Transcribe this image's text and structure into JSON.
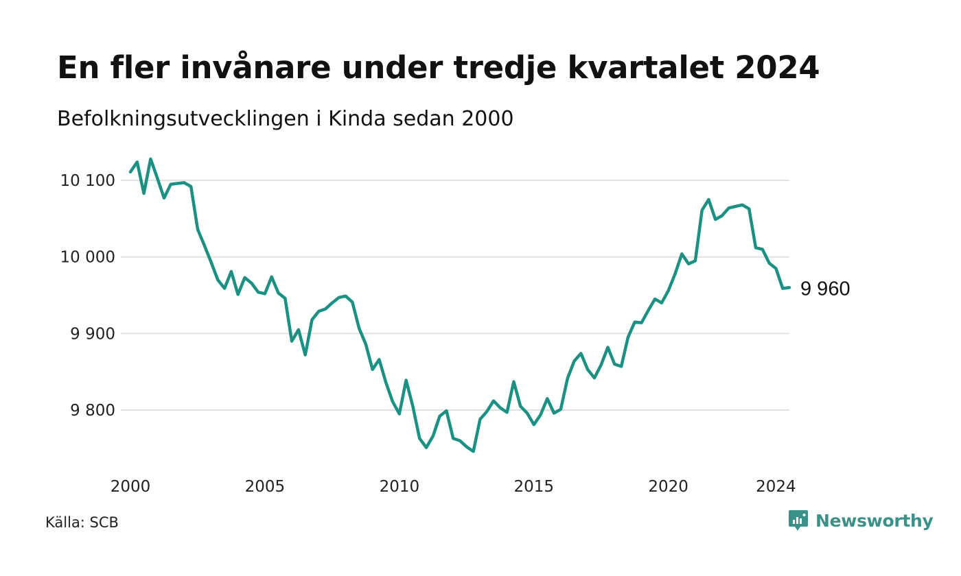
{
  "header": {
    "title": "En fler invånare under tredje kvartalet 2024",
    "subtitle": "Befolkningsutvecklingen i Kinda sedan 2000"
  },
  "footer": {
    "source": "Källa: SCB",
    "brand": "Newsworthy"
  },
  "colors": {
    "line": "#1a9182",
    "grid": "#e1e1e1",
    "brand": "#3a9188"
  },
  "icons": {
    "brand_logo": "newsworthy-logo-icon"
  },
  "chart_data": {
    "type": "line",
    "title": "En fler invånare under tredje kvartalet 2024",
    "subtitle": "Befolkningsutvecklingen i Kinda sedan 2000",
    "xlabel": "",
    "ylabel": "",
    "xlim": [
      2000,
      2024.5
    ],
    "ylim": [
      9740,
      10135
    ],
    "x_ticks": [
      2000,
      2005,
      2010,
      2015,
      2020,
      2024
    ],
    "x_tick_labels": [
      "2000",
      "2005",
      "2010",
      "2015",
      "2020",
      "2024"
    ],
    "y_ticks": [
      9800,
      9900,
      10000,
      10100
    ],
    "y_tick_labels": [
      "9 800",
      "9 900",
      "10 000",
      "10 100"
    ],
    "grid": "horizontal",
    "last_value_label": "9 960",
    "series": [
      {
        "x": [
          2000.0,
          2000.25,
          2000.5,
          2000.75,
          2001.0,
          2001.25,
          2001.5,
          2001.75,
          2002.0,
          2002.25,
          2002.5,
          2002.75,
          2003.0,
          2003.25,
          2003.5,
          2003.75,
          2004.0,
          2004.25,
          2004.5,
          2004.75,
          2005.0,
          2005.25,
          2005.5,
          2005.75,
          2006.0,
          2006.25,
          2006.5,
          2006.75,
          2007.0,
          2007.25,
          2007.5,
          2007.75,
          2008.0,
          2008.25,
          2008.5,
          2008.75,
          2009.0,
          2009.25,
          2009.5,
          2009.75,
          2010.0,
          2010.25,
          2010.5,
          2010.75,
          2011.0,
          2011.25,
          2011.5,
          2011.75,
          2012.0,
          2012.25,
          2012.5,
          2012.75,
          2013.0,
          2013.25,
          2013.5,
          2013.75,
          2014.0,
          2014.25,
          2014.5,
          2014.75,
          2015.0,
          2015.25,
          2015.5,
          2015.75,
          2016.0,
          2016.25,
          2016.5,
          2016.75,
          2017.0,
          2017.25,
          2017.5,
          2017.75,
          2018.0,
          2018.25,
          2018.5,
          2018.75,
          2019.0,
          2019.25,
          2019.5,
          2019.75,
          2020.0,
          2020.25,
          2020.5,
          2020.75,
          2021.0,
          2021.25,
          2021.5,
          2021.75,
          2022.0,
          2022.25,
          2022.5,
          2022.75,
          2023.0,
          2023.25,
          2023.5,
          2023.75,
          2024.0,
          2024.25,
          2024.5
        ],
        "values": [
          10111,
          10124,
          10083,
          10128,
          10103,
          10077,
          10095,
          10096,
          10097,
          10092,
          10036,
          10015,
          9993,
          9970,
          9959,
          9981,
          9951,
          9973,
          9966,
          9954,
          9952,
          9974,
          9953,
          9946,
          9890,
          9905,
          9872,
          9918,
          9929,
          9932,
          9940,
          9947,
          9949,
          9941,
          9907,
          9886,
          9853,
          9866,
          9836,
          9811,
          9795,
          9839,
          9805,
          9763,
          9751,
          9766,
          9792,
          9799,
          9763,
          9760,
          9752,
          9746,
          9788,
          9798,
          9812,
          9803,
          9797,
          9837,
          9805,
          9796,
          9781,
          9794,
          9815,
          9796,
          9801,
          9841,
          9864,
          9874,
          9853,
          9842,
          9859,
          9882,
          9860,
          9857,
          9895,
          9915,
          9914,
          9930,
          9945,
          9940,
          9956,
          9978,
          10004,
          9991,
          9995,
          10061,
          10075,
          10049,
          10054,
          10064,
          10066,
          10068,
          10063,
          10012,
          10010,
          9992,
          9985,
          9959,
          9960
        ]
      }
    ]
  }
}
